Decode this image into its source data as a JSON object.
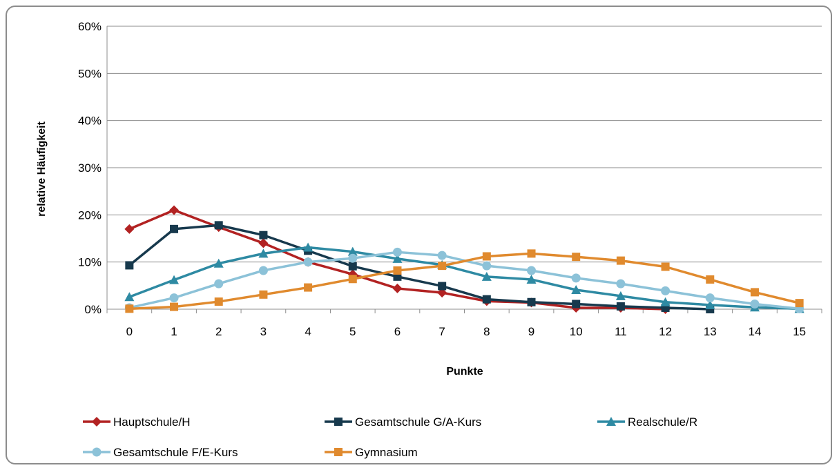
{
  "chart_data": {
    "type": "line",
    "title": "",
    "xlabel": "Punkte",
    "ylabel": "relative Häufigkeit",
    "x": [
      0,
      1,
      2,
      3,
      4,
      5,
      6,
      7,
      8,
      9,
      10,
      11,
      12,
      13,
      14,
      15
    ],
    "ylim": [
      0,
      60
    ],
    "yticks": [
      "0%",
      "10%",
      "20%",
      "30%",
      "40%",
      "50%",
      "60%"
    ],
    "ytick_values": [
      0,
      10,
      20,
      30,
      40,
      50,
      60
    ],
    "grid": true,
    "legend_position": "bottom",
    "series": [
      {
        "name": "Hauptschule/H",
        "color": "#b22222",
        "marker": "diamond",
        "values": [
          17.0,
          21.0,
          17.4,
          14.0,
          10.0,
          7.4,
          4.4,
          3.5,
          1.7,
          1.4,
          0.3,
          0.3,
          0.0,
          null,
          null,
          null
        ]
      },
      {
        "name": "Gesamtschule G/A-Kurs",
        "color": "#17394d",
        "marker": "square",
        "values": [
          9.3,
          17.0,
          17.8,
          15.7,
          12.4,
          9.1,
          6.9,
          4.9,
          2.1,
          1.5,
          1.1,
          0.6,
          0.3,
          0.0,
          null,
          null
        ]
      },
      {
        "name": "Realschule/R",
        "color": "#2e8aa3",
        "marker": "triangle",
        "values": [
          2.6,
          6.2,
          9.7,
          11.8,
          13.1,
          12.2,
          10.7,
          9.4,
          6.9,
          6.3,
          4.1,
          2.8,
          1.5,
          0.9,
          0.4,
          0.1
        ]
      },
      {
        "name": "Gesamtschule F/E-Kurs",
        "color": "#8cc2d8",
        "marker": "circle",
        "values": [
          0.3,
          2.4,
          5.4,
          8.2,
          10.0,
          10.8,
          12.1,
          11.4,
          9.2,
          8.2,
          6.6,
          5.4,
          3.9,
          2.4,
          1.1,
          0.1
        ]
      },
      {
        "name": "Gymnasium",
        "color": "#e08a2e",
        "marker": "square",
        "values": [
          0.1,
          0.5,
          1.6,
          3.1,
          4.6,
          6.4,
          8.2,
          9.2,
          11.2,
          11.8,
          11.1,
          10.3,
          9.0,
          6.3,
          3.6,
          1.3
        ]
      }
    ]
  }
}
